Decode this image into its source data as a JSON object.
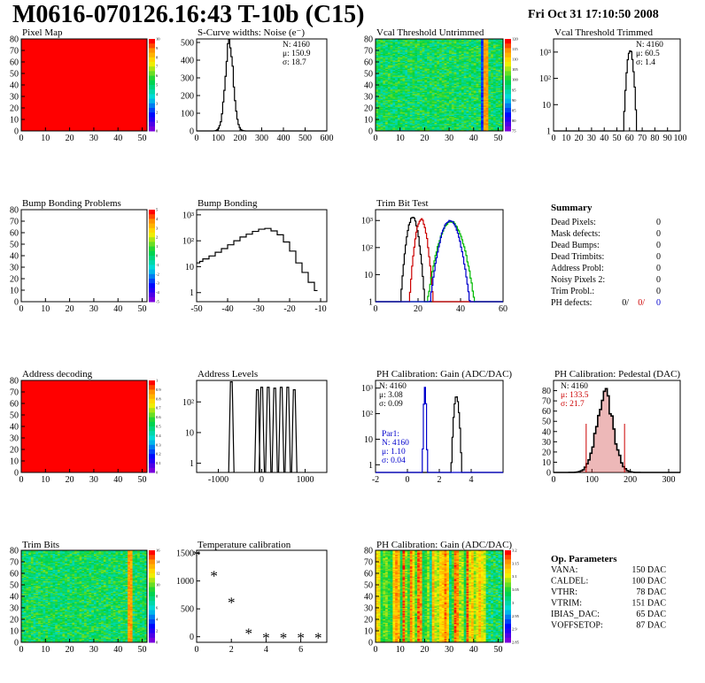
{
  "header": {
    "title": "M0616-070126.16:43 T-10b (C15)",
    "date": "Fri Oct 31 17:10:50 2008"
  },
  "colors": {
    "frame": "#000000",
    "full_red": "#ff0000",
    "trim_red": "#cc0000",
    "trim_green": "#00bb00",
    "trim_blue": "#0000cc",
    "ped_fill": "#cc3333",
    "stat_red": "#cc0000",
    "stat_blue": "#0000cc"
  },
  "chart_data": [
    {
      "id": "pixel-map",
      "type": "heatmap",
      "title": "Pixel Map",
      "xlim": [
        0,
        52
      ],
      "ylim": [
        0,
        80
      ],
      "xticks": [
        "0",
        "10",
        "20",
        "30",
        "40",
        "50"
      ],
      "yticks": [
        "0",
        "10",
        "20",
        "30",
        "40",
        "50",
        "60",
        "70",
        "80"
      ],
      "fill": "uniform-red",
      "palette_labels": [
        "10",
        "9",
        "8",
        "7",
        "6",
        "5",
        "4",
        "3",
        "2",
        "1",
        "0"
      ]
    },
    {
      "id": "s-curve",
      "type": "line",
      "title": "S-Curve widths: Noise (e⁻)",
      "xlim": [
        0,
        600
      ],
      "ylim": [
        0,
        520
      ],
      "xticks": [
        "0",
        "100",
        "200",
        "300",
        "400",
        "500",
        "600"
      ],
      "yticks": [
        "0",
        "100",
        "200",
        "300",
        "400",
        "500"
      ],
      "stats": [
        "N: 4160",
        "μ: 150.9",
        "σ: 18.7"
      ],
      "dist": {
        "mean": 150.9,
        "sigma": 18.7,
        "peak": 490
      }
    },
    {
      "id": "vcal-untrimmed",
      "type": "heatmap",
      "title": "Vcal Threshold Untrimmed",
      "xlim": [
        0,
        52
      ],
      "ylim": [
        0,
        80
      ],
      "xticks": [
        "0",
        "10",
        "20",
        "30",
        "40",
        "50"
      ],
      "yticks": [
        "0",
        "10",
        "20",
        "30",
        "40",
        "50",
        "60",
        "70",
        "80"
      ],
      "fill": "noise-green",
      "palette_labels": [
        "120",
        "115",
        "110",
        "105",
        "100",
        "95",
        "90",
        "85",
        "80",
        "75"
      ]
    },
    {
      "id": "vcal-trimmed",
      "type": "line",
      "title": "Vcal Threshold Trimmed",
      "xlim": [
        0,
        100
      ],
      "ylog": true,
      "ydecades": [
        0,
        3.5
      ],
      "xticks": [
        "0",
        "10",
        "20",
        "30",
        "40",
        "50",
        "60",
        "70",
        "80",
        "90",
        "100"
      ],
      "ytick_labels": [
        "1",
        "10",
        "10²",
        "10³"
      ],
      "stats": [
        "N: 4160",
        "μ: 60.5",
        "σ: 1.4"
      ],
      "dist": {
        "mean": 60.5,
        "sigma": 1.4,
        "peak": 1200
      }
    },
    {
      "id": "bump-problems",
      "type": "heatmap",
      "title": "Bump Bonding Problems",
      "xlim": [
        0,
        52
      ],
      "ylim": [
        0,
        80
      ],
      "xticks": [
        "0",
        "10",
        "20",
        "30",
        "40",
        "50"
      ],
      "yticks": [
        "0",
        "10",
        "20",
        "30",
        "40",
        "50",
        "60",
        "70",
        "80"
      ],
      "fill": "empty",
      "palette_labels": [
        "5",
        "4",
        "3",
        "2",
        "1",
        "0",
        "-1",
        "-2",
        "-3",
        "-4",
        "-5"
      ]
    },
    {
      "id": "bump-bonding",
      "type": "line",
      "title": "Bump Bonding",
      "xlim": [
        -50,
        -8
      ],
      "ylog": true,
      "ydecades": [
        -0.35,
        3.2
      ],
      "xticks": [
        "-50",
        "-40",
        "-30",
        "-20",
        "-10"
      ],
      "ytick_labels": [
        "1",
        "10",
        "10²",
        "10³"
      ],
      "points": [
        [
          -50,
          14
        ],
        [
          -49,
          16
        ],
        [
          -48,
          20
        ],
        [
          -46,
          26
        ],
        [
          -44,
          36
        ],
        [
          -42,
          50
        ],
        [
          -40,
          70
        ],
        [
          -38,
          100
        ],
        [
          -36,
          140
        ],
        [
          -34,
          180
        ],
        [
          -32,
          230
        ],
        [
          -30,
          280
        ],
        [
          -28,
          300
        ],
        [
          -26,
          240
        ],
        [
          -24,
          170
        ],
        [
          -22,
          90
        ],
        [
          -20,
          40
        ],
        [
          -18,
          14
        ],
        [
          -16,
          6
        ],
        [
          -14,
          2.5
        ],
        [
          -12,
          1.2
        ]
      ]
    },
    {
      "id": "trim-bit-test",
      "type": "line",
      "title": "Trim Bit Test",
      "xlim": [
        0,
        60
      ],
      "ylog": true,
      "ydecades": [
        0,
        3.4
      ],
      "xticks": [
        "0",
        "20",
        "40",
        "60"
      ],
      "ytick_labels": [
        "1",
        "10",
        "10²",
        "10³"
      ],
      "series": [
        {
          "color": "#000000",
          "mean": 17.5,
          "sigma": 1.5,
          "peak": 1300
        },
        {
          "color": "#cc0000",
          "mean": 21.5,
          "sigma": 1.5,
          "peak": 1100
        },
        {
          "color": "#00bb00",
          "mean": 35.5,
          "sigma": 3.0,
          "peak": 900
        },
        {
          "color": "#0000cc",
          "mean": 35.0,
          "sigma": 2.5,
          "peak": 1000
        }
      ]
    },
    {
      "id": "summary",
      "type": "table",
      "title": "Summary",
      "rows": [
        {
          "label": "Dead Pixels:",
          "value": "0"
        },
        {
          "label": "Mask defects:",
          "value": "0"
        },
        {
          "label": "Dead Bumps:",
          "value": "0"
        },
        {
          "label": "Dead Trimbits:",
          "value": "0"
        },
        {
          "label": "Address Probl:",
          "value": "0"
        },
        {
          "label": "Noisy Pixels 2:",
          "value": "0"
        },
        {
          "label": "Trim Probl.:",
          "value": "0"
        }
      ],
      "ph_defects": {
        "label": "PH defects:",
        "v1": "0/",
        "v2": "0/",
        "v3": "0"
      }
    },
    {
      "id": "address-decoding",
      "type": "heatmap",
      "title": "Address decoding",
      "xlim": [
        0,
        52
      ],
      "ylim": [
        0,
        80
      ],
      "xticks": [
        "0",
        "10",
        "20",
        "30",
        "40",
        "50"
      ],
      "yticks": [
        "0",
        "10",
        "20",
        "30",
        "40",
        "50",
        "60",
        "70",
        "80"
      ],
      "fill": "uniform-red",
      "palette_labels": [
        "1",
        "0.9",
        "0.8",
        "0.7",
        "0.6",
        "0.5",
        "0.4",
        "0.3",
        "0.2",
        "0.1",
        "0"
      ]
    },
    {
      "id": "address-levels",
      "type": "line",
      "title": "Address Levels",
      "xlim": [
        -1500,
        1500
      ],
      "ylog": true,
      "ydecades": [
        -0.3,
        2.7
      ],
      "xticks": [
        "-1000",
        "0",
        "1000"
      ],
      "ytick_labels": [
        "1",
        "10",
        "10²"
      ],
      "spikes": [
        [
          -700,
          450
        ],
        [
          -100,
          250
        ],
        [
          0,
          300
        ],
        [
          150,
          300
        ],
        [
          300,
          280
        ],
        [
          450,
          300
        ],
        [
          600,
          300
        ],
        [
          750,
          250
        ]
      ]
    },
    {
      "id": "ph-gain",
      "type": "line",
      "title": "PH Calibration: Gain (ADC/DAC)",
      "xlim": [
        -2,
        6
      ],
      "ylog": true,
      "ydecades": [
        -0.3,
        3.3
      ],
      "xticks": [
        "-2",
        "0",
        "2",
        "4"
      ],
      "ytick_labels": [
        "1",
        "10",
        "10²",
        "10³"
      ],
      "stats": [
        "N: 4160",
        "μ: 3.08",
        "σ: 0.09"
      ],
      "stats2": [
        "Par1:",
        "N: 4160",
        "μ: 1.10",
        "σ: 0.04"
      ],
      "series": [
        {
          "color": "#000000",
          "mean": 3.08,
          "sigma": 0.09,
          "peak": 500
        },
        {
          "color": "#0000cc",
          "mean": 1.1,
          "sigma": 0.04,
          "peak": 1000
        }
      ]
    },
    {
      "id": "ph-pedestal",
      "type": "bar",
      "title": "PH Calibration: Pedestal (DAC)",
      "xlim": [
        0,
        330
      ],
      "ylim": [
        0,
        90
      ],
      "xticks": [
        "0",
        "100",
        "200",
        "300"
      ],
      "yticks": [
        "0",
        "10",
        "20",
        "30",
        "40",
        "50",
        "60",
        "70",
        "80"
      ],
      "stats": [
        "N: 4160",
        "μ: 133.5",
        "σ: 21.7"
      ],
      "dist": {
        "mean": 133.5,
        "sigma": 21.7,
        "peak": 76
      },
      "markers": [
        85,
        185
      ]
    },
    {
      "id": "trim-bits",
      "type": "heatmap",
      "title": "Trim Bits",
      "xlim": [
        0,
        52
      ],
      "ylim": [
        0,
        80
      ],
      "xticks": [
        "0",
        "10",
        "20",
        "30",
        "40",
        "50"
      ],
      "yticks": [
        "0",
        "10",
        "20",
        "30",
        "40",
        "50",
        "60",
        "70",
        "80"
      ],
      "fill": "noise-green",
      "palette_labels": [
        "16",
        "14",
        "12",
        "10",
        "8",
        "6",
        "4",
        "2",
        "0"
      ]
    },
    {
      "id": "temperature-calibration",
      "type": "scatter",
      "title": "Temperature calibration",
      "xlim": [
        0,
        7.5
      ],
      "ylim": [
        -100,
        1550
      ],
      "xticks": [
        "0",
        "2",
        "4",
        "6"
      ],
      "yticks": [
        "0",
        "500",
        "1000",
        "1500"
      ],
      "points": [
        [
          0,
          1470
        ],
        [
          1,
          1100
        ],
        [
          2,
          620
        ],
        [
          3,
          70
        ],
        [
          4,
          -10
        ],
        [
          5,
          -10
        ],
        [
          6,
          -10
        ],
        [
          7,
          -10
        ]
      ]
    },
    {
      "id": "ph-gain-map",
      "type": "heatmap",
      "title": "PH Calibration: Gain (ADC/DAC)",
      "xlim": [
        0,
        52
      ],
      "ylim": [
        0,
        80
      ],
      "xticks": [
        "0",
        "10",
        "20",
        "30",
        "40",
        "50"
      ],
      "yticks": [
        "0",
        "10",
        "20",
        "30",
        "40",
        "50",
        "60",
        "70",
        "80"
      ],
      "fill": "stripes",
      "palette_labels": [
        "3.2",
        "3.15",
        "3.1",
        "3.05",
        "3",
        "2.95",
        "2.9",
        "2.85"
      ]
    },
    {
      "id": "op-parameters",
      "type": "table",
      "title": "Op. Parameters",
      "rows": [
        {
          "label": "VANA:",
          "value": "150 DAC"
        },
        {
          "label": "CALDEL:",
          "value": "100 DAC"
        },
        {
          "label": "VTHR:",
          "value": "78 DAC"
        },
        {
          "label": "VTRIM:",
          "value": "151 DAC"
        },
        {
          "label": "IBIAS_DAC:",
          "value": "65 DAC"
        },
        {
          "label": "VOFFSETOP:",
          "value": "87 DAC"
        }
      ]
    }
  ]
}
